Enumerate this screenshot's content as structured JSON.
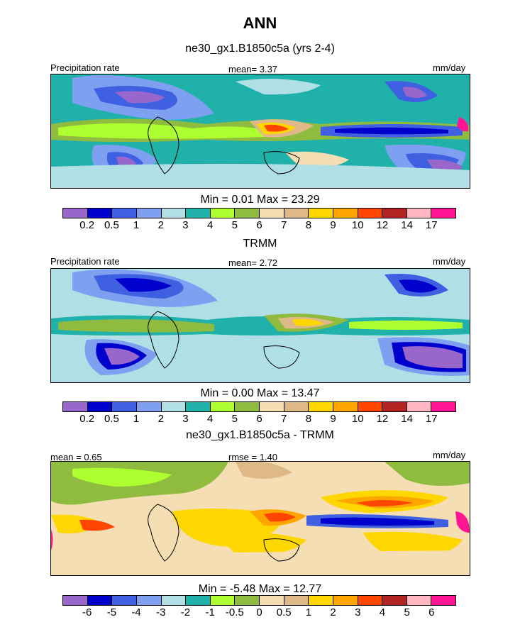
{
  "figure": {
    "title": "ANN"
  },
  "palettes": {
    "precip": [
      "#9966cc",
      "#0000cd",
      "#3f60e0",
      "#7fa0f0",
      "#b0e0e6",
      "#20b2aa",
      "#adff2f",
      "#8fbc3f",
      "#f5deb3",
      "#deb887",
      "#ffd700",
      "#ffa500",
      "#ff4500",
      "#b22222",
      "#ffb6c1",
      "#ff1493"
    ],
    "diff": [
      "#9966cc",
      "#0000cd",
      "#3f60e0",
      "#7fa0f0",
      "#b0e0e6",
      "#20b2aa",
      "#adff2f",
      "#8fbc3f",
      "#f5deb3",
      "#deb887",
      "#ffd700",
      "#ffa500",
      "#ff4500",
      "#b22222",
      "#ffb6c1",
      "#ff1493"
    ]
  },
  "chart_data": [
    {
      "type": "heatmap",
      "title": "ne30_gx1.B1850c5a (yrs 2-4)",
      "left_label": "Precipitation rate",
      "center_label": "mean=   3.37",
      "units": "mm/day",
      "stats_text": "Min =   0.01 Max =  23.29",
      "min": 0.01,
      "max": 23.29,
      "mean": 3.37,
      "colorbar_ticks": [
        "0.2",
        "0.5",
        "1",
        "2",
        "3",
        "4",
        "5",
        "6",
        "7",
        "8",
        "9",
        "10",
        "12",
        "14",
        "17"
      ]
    },
    {
      "type": "heatmap",
      "title": "TRMM",
      "left_label": "Precipitation rate",
      "center_label": "mean=   2.72",
      "units": "mm/day",
      "stats_text": "Min =   0.00 Max =  13.47",
      "min": 0.0,
      "max": 13.47,
      "mean": 2.72,
      "colorbar_ticks": [
        "0.2",
        "0.5",
        "1",
        "2",
        "3",
        "4",
        "5",
        "6",
        "7",
        "8",
        "9",
        "10",
        "12",
        "14",
        "17"
      ]
    },
    {
      "type": "heatmap",
      "title": "ne30_gx1.B1850c5a - TRMM",
      "left_label": "mean =   0.65",
      "center_label": "rmse =   1.40",
      "units": "mm/day",
      "stats_text": "Min =  -5.48 Max =  12.77",
      "min": -5.48,
      "max": 12.77,
      "mean": 0.65,
      "rmse": 1.4,
      "colorbar_ticks": [
        "-6",
        "-5",
        "-4",
        "-3",
        "-2",
        "-1",
        "-0.5",
        "0",
        "0.5",
        "1",
        "2",
        "3",
        "4",
        "5",
        "6"
      ]
    }
  ]
}
